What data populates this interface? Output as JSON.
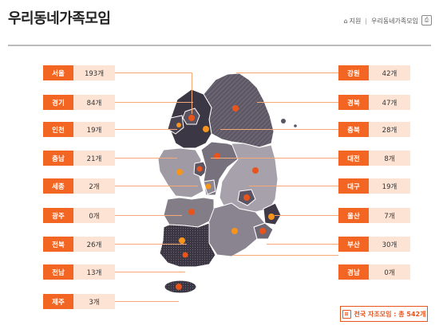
{
  "header": {
    "title": "우리동네가족모임",
    "breadcrumb": {
      "home_label": "지원",
      "current": "우리동네가족모임"
    }
  },
  "regions_left": [
    {
      "name": "서울",
      "count": "193개"
    },
    {
      "name": "경기",
      "count": "84개"
    },
    {
      "name": "인천",
      "count": "19개"
    },
    {
      "name": "충남",
      "count": "21개"
    },
    {
      "name": "세종",
      "count": "2개"
    },
    {
      "name": "광주",
      "count": "0개"
    },
    {
      "name": "전북",
      "count": "26개"
    },
    {
      "name": "전남",
      "count": "13개"
    },
    {
      "name": "제주",
      "count": "3개"
    }
  ],
  "regions_right": [
    {
      "name": "강원",
      "count": "42개"
    },
    {
      "name": "경북",
      "count": "47개"
    },
    {
      "name": "충북",
      "count": "28개"
    },
    {
      "name": "대전",
      "count": "8개"
    },
    {
      "name": "대구",
      "count": "19개"
    },
    {
      "name": "울산",
      "count": "7개"
    },
    {
      "name": "부산",
      "count": "30개"
    },
    {
      "name": "경남",
      "count": "0개"
    }
  ],
  "total": {
    "label": "전국 자조모임 : 총 542개"
  },
  "colors": {
    "accent": "#f26522",
    "count_bg": "#fde3d4",
    "map_dark": "#3d3845",
    "map_mid": "#6a6470",
    "map_light": "#a8a3ab"
  },
  "icons": {
    "home": "home-icon",
    "print": "print-icon",
    "total": "network-icon"
  }
}
